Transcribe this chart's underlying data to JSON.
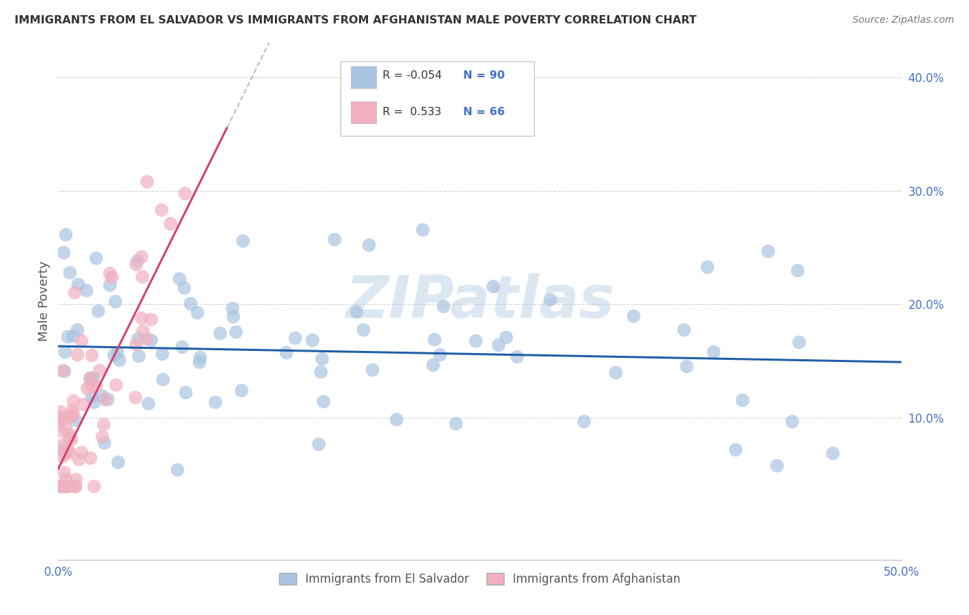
{
  "title": "IMMIGRANTS FROM EL SALVADOR VS IMMIGRANTS FROM AFGHANISTAN MALE POVERTY CORRELATION CHART",
  "source": "Source: ZipAtlas.com",
  "ylabel": "Male Poverty",
  "watermark": "ZIPatlas",
  "color_el_salvador": "#a8c4e0",
  "color_afghanistan": "#f0b0c0",
  "line_color_el_salvador": "#1f5fa6",
  "line_color_afghanistan": "#d44070",
  "background_color": "#ffffff",
  "grid_color": "#cccccc",
  "xlim": [
    0.0,
    0.5
  ],
  "ylim": [
    -0.025,
    0.43
  ],
  "right_ytick_vals": [
    0.1,
    0.2,
    0.3,
    0.4
  ],
  "right_yticks": [
    "10.0%",
    "20.0%",
    "30.0%",
    "40.0%"
  ],
  "xtick_positions": [
    0.0,
    0.1,
    0.2,
    0.3,
    0.4,
    0.5
  ],
  "sv_intercept": 0.163,
  "sv_slope": -0.028,
  "af_intercept": 0.055,
  "af_slope": 3.0,
  "sv_seed": 77,
  "af_seed": 33
}
